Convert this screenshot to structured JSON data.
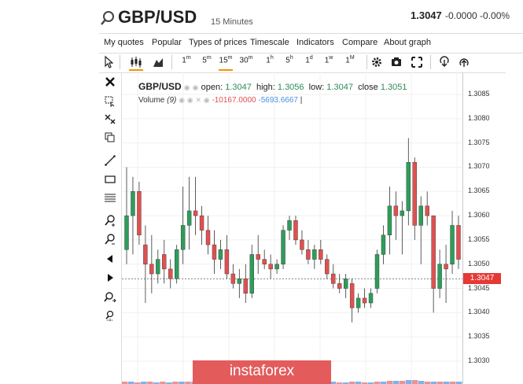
{
  "header": {
    "title": "GBP/USD",
    "interval": "15 Minutes",
    "price": "1.3047",
    "change": "-0.0000 -0.00%"
  },
  "menu": [
    "My quotes",
    "Popular",
    "Types of prices",
    "Timescale",
    "Indicators",
    "Compare",
    "About graph"
  ],
  "timeframes": [
    {
      "base": "1",
      "sup": "m"
    },
    {
      "base": "5",
      "sup": "m"
    },
    {
      "base": "15",
      "sup": "m"
    },
    {
      "base": "30",
      "sup": "m"
    },
    {
      "base": "1",
      "sup": "h"
    },
    {
      "base": "5",
      "sup": "h"
    },
    {
      "base": "1",
      "sup": "d"
    },
    {
      "base": "1",
      "sup": "w"
    },
    {
      "base": "1",
      "sup": "M"
    }
  ],
  "active_timeframe_index": 2,
  "legend": {
    "symbol": "GBP/USD",
    "open_label": "open:",
    "open": "1.3047",
    "high_label": "high:",
    "high": "1.3056",
    "low_label": "low:",
    "low": "1.3047",
    "close_label": "close",
    "close": "1.3051",
    "volume_label": "Volume",
    "volume_period": "(9)",
    "volume_value1": "-10167.0000",
    "volume_value2": "-5693.6667",
    "volume_cursor": "|"
  },
  "price_axis": [
    "1.3085",
    "1.3080",
    "1.3075",
    "1.3070",
    "1.3065",
    "1.3060",
    "1.3055",
    "1.3050",
    "1.3045",
    "1.3040",
    "1.3035",
    "1.3030"
  ],
  "current_price_tag": "1.3047",
  "watermark": "instaforex",
  "colors": {
    "up": "#2e9d5a",
    "down": "#e05050",
    "accent": "#f29400",
    "volume_up": "#4a90e2",
    "volume_down": "#e06666"
  },
  "chart_data": {
    "type": "candlestick",
    "ylim": [
      1.303,
      1.3085
    ],
    "candles": [
      {
        "o": 1.3053,
        "h": 1.307,
        "l": 1.305,
        "c": 1.306
      },
      {
        "o": 1.306,
        "h": 1.3068,
        "l": 1.3052,
        "c": 1.3065
      },
      {
        "o": 1.3065,
        "h": 1.3067,
        "l": 1.3054,
        "c": 1.3056
      },
      {
        "o": 1.3054,
        "h": 1.3058,
        "l": 1.3042,
        "c": 1.305
      },
      {
        "o": 1.305,
        "h": 1.3056,
        "l": 1.3044,
        "c": 1.3048
      },
      {
        "o": 1.3048,
        "h": 1.3053,
        "l": 1.3046,
        "c": 1.3051
      },
      {
        "o": 1.3052,
        "h": 1.3055,
        "l": 1.3046,
        "c": 1.3049
      },
      {
        "o": 1.3049,
        "h": 1.3051,
        "l": 1.3045,
        "c": 1.3047
      },
      {
        "o": 1.3047,
        "h": 1.3054,
        "l": 1.3046,
        "c": 1.3053
      },
      {
        "o": 1.3053,
        "h": 1.3066,
        "l": 1.305,
        "c": 1.3058
      },
      {
        "o": 1.3058,
        "h": 1.3068,
        "l": 1.3053,
        "c": 1.3061
      },
      {
        "o": 1.3061,
        "h": 1.3068,
        "l": 1.3056,
        "c": 1.306
      },
      {
        "o": 1.306,
        "h": 1.3062,
        "l": 1.3054,
        "c": 1.3057
      },
      {
        "o": 1.3057,
        "h": 1.306,
        "l": 1.3052,
        "c": 1.3054
      },
      {
        "o": 1.3054,
        "h": 1.3057,
        "l": 1.3048,
        "c": 1.3051
      },
      {
        "o": 1.3051,
        "h": 1.3055,
        "l": 1.3049,
        "c": 1.3053
      },
      {
        "o": 1.3053,
        "h": 1.3056,
        "l": 1.3047,
        "c": 1.3048
      },
      {
        "o": 1.3048,
        "h": 1.305,
        "l": 1.3045,
        "c": 1.3046
      },
      {
        "o": 1.3046,
        "h": 1.3049,
        "l": 1.3043,
        "c": 1.3047
      },
      {
        "o": 1.3047,
        "h": 1.305,
        "l": 1.3042,
        "c": 1.3044
      },
      {
        "o": 1.3044,
        "h": 1.3054,
        "l": 1.3043,
        "c": 1.3052
      },
      {
        "o": 1.3052,
        "h": 1.3056,
        "l": 1.3048,
        "c": 1.3051
      },
      {
        "o": 1.3051,
        "h": 1.3053,
        "l": 1.3049,
        "c": 1.305
      },
      {
        "o": 1.305,
        "h": 1.3052,
        "l": 1.3047,
        "c": 1.3049
      },
      {
        "o": 1.3049,
        "h": 1.3051,
        "l": 1.3048,
        "c": 1.305
      },
      {
        "o": 1.305,
        "h": 1.3058,
        "l": 1.3049,
        "c": 1.3057
      },
      {
        "o": 1.3057,
        "h": 1.306,
        "l": 1.3055,
        "c": 1.3059
      },
      {
        "o": 1.3059,
        "h": 1.306,
        "l": 1.3054,
        "c": 1.3055
      },
      {
        "o": 1.3055,
        "h": 1.3057,
        "l": 1.3052,
        "c": 1.3053
      },
      {
        "o": 1.3053,
        "h": 1.3055,
        "l": 1.305,
        "c": 1.3051
      },
      {
        "o": 1.3051,
        "h": 1.3054,
        "l": 1.3049,
        "c": 1.3053
      },
      {
        "o": 1.3053,
        "h": 1.3055,
        "l": 1.305,
        "c": 1.3051
      },
      {
        "o": 1.3051,
        "h": 1.3052,
        "l": 1.3047,
        "c": 1.3048
      },
      {
        "o": 1.3048,
        "h": 1.305,
        "l": 1.3045,
        "c": 1.3046
      },
      {
        "o": 1.3046,
        "h": 1.3048,
        "l": 1.3044,
        "c": 1.3045
      },
      {
        "o": 1.3045,
        "h": 1.3048,
        "l": 1.3043,
        "c": 1.3047
      },
      {
        "o": 1.3046,
        "h": 1.3047,
        "l": 1.3038,
        "c": 1.3041
      },
      {
        "o": 1.3041,
        "h": 1.3044,
        "l": 1.304,
        "c": 1.3043
      },
      {
        "o": 1.3043,
        "h": 1.3045,
        "l": 1.3041,
        "c": 1.3042
      },
      {
        "o": 1.3042,
        "h": 1.3045,
        "l": 1.3041,
        "c": 1.3044
      },
      {
        "o": 1.3045,
        "h": 1.3053,
        "l": 1.3044,
        "c": 1.3052
      },
      {
        "o": 1.3052,
        "h": 1.3058,
        "l": 1.305,
        "c": 1.3056
      },
      {
        "o": 1.3056,
        "h": 1.3066,
        "l": 1.3052,
        "c": 1.3062
      },
      {
        "o": 1.3062,
        "h": 1.3065,
        "l": 1.3055,
        "c": 1.306
      },
      {
        "o": 1.306,
        "h": 1.3063,
        "l": 1.3052,
        "c": 1.3061
      },
      {
        "o": 1.3061,
        "h": 1.3076,
        "l": 1.3058,
        "c": 1.3071
      },
      {
        "o": 1.3071,
        "h": 1.3072,
        "l": 1.3055,
        "c": 1.3058
      },
      {
        "o": 1.3058,
        "h": 1.3064,
        "l": 1.305,
        "c": 1.3062
      },
      {
        "o": 1.3062,
        "h": 1.3065,
        "l": 1.3058,
        "c": 1.306
      },
      {
        "o": 1.306,
        "h": 1.306,
        "l": 1.304,
        "c": 1.3045
      },
      {
        "o": 1.3045,
        "h": 1.3053,
        "l": 1.3043,
        "c": 1.305
      },
      {
        "o": 1.305,
        "h": 1.3054,
        "l": 1.3042,
        "c": 1.3049
      },
      {
        "o": 1.305,
        "h": 1.3061,
        "l": 1.3048,
        "c": 1.3058
      },
      {
        "o": 1.3058,
        "h": 1.306,
        "l": 1.3049,
        "c": 1.3051
      }
    ],
    "volume": [
      3,
      3,
      2,
      3,
      3,
      2,
      3,
      2,
      3,
      3,
      3,
      3,
      3,
      2,
      3,
      2,
      3,
      3,
      2,
      3,
      3,
      2,
      2,
      3,
      2,
      3,
      3,
      3,
      2,
      2,
      3,
      2,
      3,
      3,
      2,
      2,
      3,
      3,
      2,
      2,
      3,
      3,
      4,
      4,
      4,
      5,
      5,
      4,
      3,
      3,
      3,
      3,
      3,
      3
    ]
  }
}
